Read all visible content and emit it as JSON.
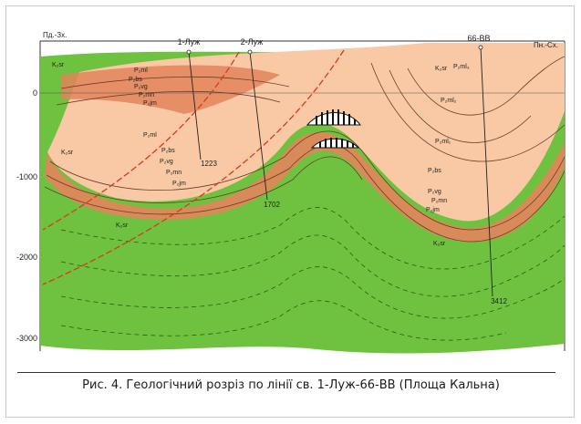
{
  "figure": {
    "caption": "Рис. 4. Геологічний розріз по лінії св. 1-Луж-66-ВВ (Площа Кальна)"
  },
  "directions": {
    "left": "Пд.-Зх.",
    "right": "Пн.-Сх."
  },
  "depth_axis": {
    "ticks": [
      "0",
      "-1000",
      "-2000",
      "-3000"
    ]
  },
  "wells": [
    {
      "name": "1-Луж",
      "depth": "1223"
    },
    {
      "name": "2-Луж",
      "depth": "1702"
    },
    {
      "name": "66-ВВ",
      "depth": "3412"
    }
  ],
  "formation_labels": {
    "k_sr_1": "K₂sr",
    "k_sr_2": "K₂sr",
    "k_sr_3": "K₂sr",
    "k_sr_4": "K₂sr",
    "k_sr_5": "K₂sr",
    "ml_a": "P₂ml",
    "bs_a": "P₂bs",
    "vg_a": "P₂vg",
    "mn_a": "P₂mn",
    "jm_a": "P₂jm",
    "ml_b": "P₂ml",
    "bs_b": "P₂bs",
    "vg_b": "P₂vg",
    "mn_b": "P₂mn",
    "jm_b": "P₂jm",
    "ml3": "P₂ml₃",
    "ml2": "P₂ml₂",
    "ml1": "P₂ml₁",
    "bs_c": "P₂bs",
    "vg_c": "P₂vg",
    "mn_c": "P₂mn",
    "jm_c": "P₂jm"
  },
  "colors": {
    "green": "#6fc23f",
    "salmon": "#f2ad85",
    "light_salmon": "#f8c9a4",
    "orange": "#e3845b",
    "fault": "#d83a1e"
  }
}
